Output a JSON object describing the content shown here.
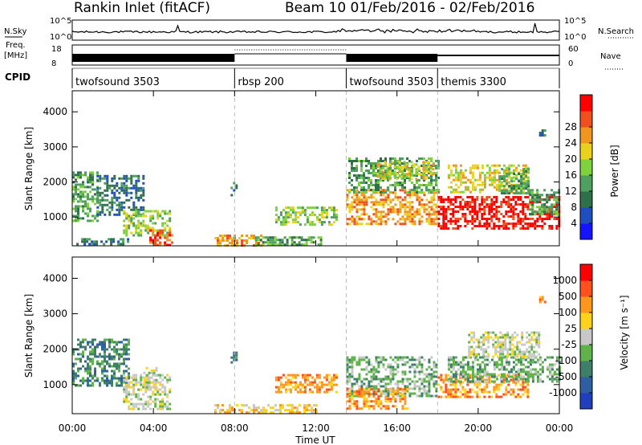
{
  "header": {
    "title": "Rankin Inlet (fitACF)",
    "beam_dates": "Beam 10   01/Feb/2016 - 02/Feb/2016"
  },
  "chart_data": [
    {
      "type": "line",
      "panel": "summary-sky-search",
      "left_label": "N.Sky",
      "right_label": "N.Search",
      "left_ticks": [
        "10^5",
        "10^0"
      ],
      "right_ticks": [
        "10^5",
        "10^0"
      ]
    },
    {
      "type": "line",
      "panel": "summary-freq-nave",
      "left_label": "Freq.",
      "left_unit": "[MHz]",
      "right_label": "Nave",
      "left_ticks": [
        "18",
        "8"
      ],
      "right_ticks": [
        "60",
        "0"
      ]
    },
    {
      "type": "table",
      "panel": "cpid",
      "label": "CPID",
      "segments": [
        {
          "name": "twofsound 3503",
          "start_h": 0.0,
          "end_h": 8.0
        },
        {
          "name": "rbsp 200",
          "start_h": 8.0,
          "end_h": 13.5
        },
        {
          "name": "twofsound 3503",
          "start_h": 13.5,
          "end_h": 18.0
        },
        {
          "name": "themis 3300",
          "start_h": 18.0,
          "end_h": 24.0
        }
      ]
    },
    {
      "type": "heatmap",
      "panel": "power",
      "xlabel": "Time UT",
      "ylabel": "Slant Range [km]",
      "xlim": [
        0,
        24
      ],
      "ylim": [
        180,
        4600
      ],
      "ticks": {
        "x": [
          "00:00",
          "04:00",
          "08:00",
          "12:00",
          "16:00",
          "20:00",
          "00:00"
        ],
        "y": [
          "1000",
          "2000",
          "3000",
          "4000"
        ]
      },
      "colorbar": {
        "label": "Power [dB]",
        "ticks": [
          "4",
          "8",
          "12",
          "16",
          "20",
          "24",
          "28"
        ],
        "colors": [
          "#1414ff",
          "#1f4fbf",
          "#2f6f4a",
          "#4f9f5f",
          "#7fd23c",
          "#e8d21f",
          "#f0961e",
          "#f0501e",
          "#ff0000"
        ]
      },
      "regions": [
        {
          "t0": 0.0,
          "t1": 1.2,
          "r0": 900,
          "r1": 2300,
          "v": 3
        },
        {
          "t0": 1.2,
          "t1": 3.5,
          "r0": 1100,
          "r1": 2200,
          "v": 2
        },
        {
          "t0": 2.5,
          "t1": 4.8,
          "r0": 450,
          "r1": 1200,
          "v": 4
        },
        {
          "t0": 3.8,
          "t1": 4.9,
          "r0": 200,
          "r1": 650,
          "v": 7
        },
        {
          "t0": 0.2,
          "t1": 2.8,
          "r0": 200,
          "r1": 400,
          "v": 2
        },
        {
          "t0": 7.8,
          "t1": 8.1,
          "r0": 1600,
          "r1": 2000,
          "v": 2
        },
        {
          "t0": 7.0,
          "t1": 9.3,
          "r0": 200,
          "r1": 500,
          "v": 6
        },
        {
          "t0": 9.0,
          "t1": 12.3,
          "r0": 200,
          "r1": 450,
          "v": 3
        },
        {
          "t0": 10.0,
          "t1": 13.0,
          "r0": 800,
          "r1": 1300,
          "v": 4
        },
        {
          "t0": 13.5,
          "t1": 18.0,
          "r0": 800,
          "r1": 1800,
          "v": 6
        },
        {
          "t0": 13.6,
          "t1": 18.0,
          "r0": 1700,
          "r1": 2700,
          "v": 3
        },
        {
          "t0": 15.0,
          "t1": 17.8,
          "r0": 2100,
          "r1": 2600,
          "v": 5
        },
        {
          "t0": 18.0,
          "t1": 24.0,
          "r0": 650,
          "r1": 1600,
          "v": 8
        },
        {
          "t0": 18.5,
          "t1": 22.5,
          "r0": 1700,
          "r1": 2500,
          "v": 5
        },
        {
          "t0": 21.0,
          "t1": 22.5,
          "r0": 1700,
          "r1": 2400,
          "v": 3
        },
        {
          "t0": 22.5,
          "t1": 24.0,
          "r0": 1100,
          "r1": 1800,
          "v": 3
        },
        {
          "t0": 23.0,
          "t1": 23.3,
          "r0": 3300,
          "r1": 3500,
          "v": 2
        }
      ]
    },
    {
      "type": "heatmap",
      "panel": "velocity",
      "xlabel": "Time UT",
      "ylabel": "Slant Range [km]",
      "xlim": [
        0,
        24
      ],
      "ylim": [
        180,
        4600
      ],
      "ticks": {
        "x": [
          "00:00",
          "04:00",
          "08:00",
          "12:00",
          "16:00",
          "20:00",
          "00:00"
        ],
        "y": [
          "1000",
          "2000",
          "3000",
          "4000"
        ]
      },
      "colorbar": {
        "label": "Velocity [m s⁻¹]",
        "ticks": [
          "1000",
          "500",
          "100",
          "25",
          "-25",
          "-100",
          "-500",
          "-1000"
        ],
        "colors": [
          "#1f3fbf",
          "#2f5fa0",
          "#3f7f6a",
          "#5fb34a",
          "#c8c8c8",
          "#ffd21e",
          "#ff961e",
          "#ff501e",
          "#ff0000"
        ]
      },
      "regions": [
        {
          "t0": 0.0,
          "t1": 2.8,
          "r0": 1000,
          "r1": 2300,
          "v": 2
        },
        {
          "t0": 2.5,
          "t1": 4.8,
          "r0": 300,
          "r1": 1300,
          "v": 4
        },
        {
          "t0": 3.5,
          "t1": 4.2,
          "r0": 900,
          "r1": 1500,
          "v": 4
        },
        {
          "t0": 7.8,
          "t1": 8.1,
          "r0": 1600,
          "r1": 2000,
          "v": 2
        },
        {
          "t0": 7.0,
          "t1": 12.0,
          "r0": 200,
          "r1": 450,
          "v": 5
        },
        {
          "t0": 10.0,
          "t1": 13.0,
          "r0": 800,
          "r1": 1300,
          "v": 6
        },
        {
          "t0": 13.5,
          "t1": 18.0,
          "r0": 700,
          "r1": 1800,
          "v": 3
        },
        {
          "t0": 13.5,
          "t1": 16.5,
          "r0": 300,
          "r1": 900,
          "v": 6
        },
        {
          "t0": 18.0,
          "t1": 22.5,
          "r0": 650,
          "r1": 1300,
          "v": 6
        },
        {
          "t0": 18.5,
          "t1": 24.0,
          "r0": 1100,
          "r1": 1800,
          "v": 3
        },
        {
          "t0": 19.5,
          "t1": 23.0,
          "r0": 1800,
          "r1": 2500,
          "v": 4
        },
        {
          "t0": 23.0,
          "t1": 23.3,
          "r0": 3300,
          "r1": 3500,
          "v": 6
        }
      ]
    }
  ]
}
